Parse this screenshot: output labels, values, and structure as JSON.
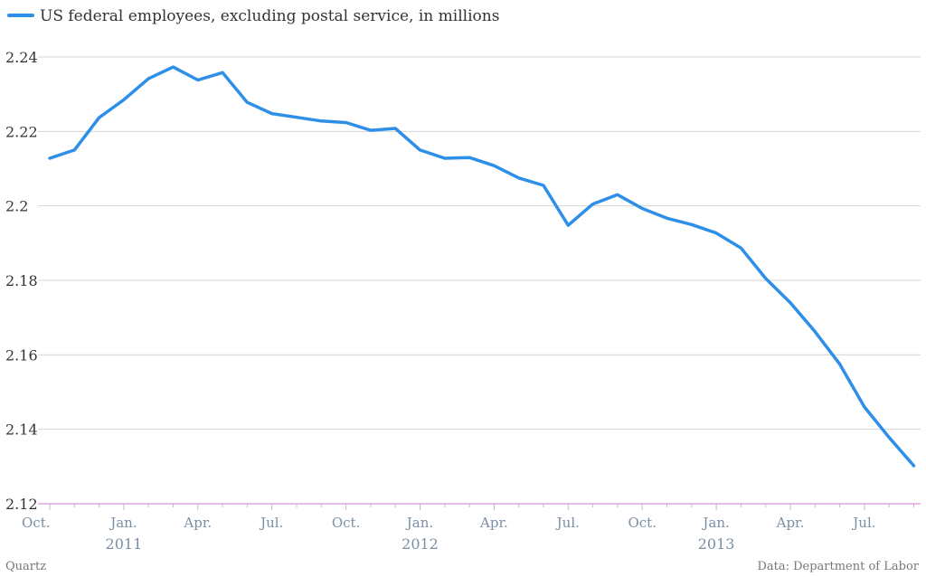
{
  "chart_data": {
    "type": "line",
    "legend": "US federal employees, excluding postal service, in millions",
    "series": [
      {
        "name": "US federal employees, excluding postal service, in millions",
        "color": "#2e8fe8",
        "values": [
          2.2128,
          2.215,
          2.2237,
          2.2285,
          2.2342,
          2.2373,
          2.2338,
          2.2358,
          2.2278,
          2.2248,
          2.2238,
          2.2228,
          2.2224,
          2.2203,
          2.2208,
          2.215,
          2.2128,
          2.213,
          2.2108,
          2.2075,
          2.2055,
          2.1948,
          2.2005,
          2.203,
          2.1993,
          2.1967,
          2.195,
          2.1927,
          2.1887,
          2.1805,
          2.174,
          2.1662,
          2.1575,
          2.146,
          2.1378,
          2.1302
        ]
      }
    ],
    "ylim": [
      2.12,
      2.24
    ],
    "yticks": [
      "2.12",
      "2.14",
      "2.16",
      "2.18",
      "2.2",
      "2.22",
      "2.24"
    ],
    "xticks": [
      {
        "label": "Oct.",
        "index": 0
      },
      {
        "label": "Jan.",
        "index": 3
      },
      {
        "label": "Apr.",
        "index": 6
      },
      {
        "label": "Jul.",
        "index": 9
      },
      {
        "label": "Oct.",
        "index": 12
      },
      {
        "label": "Jan.",
        "index": 15
      },
      {
        "label": "Apr.",
        "index": 18
      },
      {
        "label": "Jul.",
        "index": 21
      },
      {
        "label": "Oct.",
        "index": 24
      },
      {
        "label": "Jan.",
        "index": 27
      },
      {
        "label": "Apr.",
        "index": 30
      },
      {
        "label": "Jul.",
        "index": 33
      }
    ],
    "years": [
      {
        "label": "2011",
        "index": 3
      },
      {
        "label": "2012",
        "index": 15
      },
      {
        "label": "2013",
        "index": 27
      }
    ],
    "grid": true,
    "legend_position": "top-left"
  },
  "footer": {
    "left": "Quartz",
    "right": "Data: Department of Labor"
  }
}
